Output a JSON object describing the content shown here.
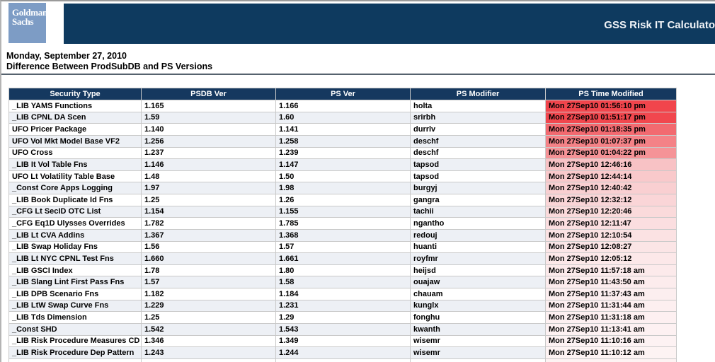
{
  "brand": {
    "logo_line1": "Goldman",
    "logo_line2": "Sachs",
    "banner_title": "GSS Risk IT Calculato"
  },
  "page": {
    "date_line": "Monday, September 27, 2010",
    "subtitle": "Difference Between ProdSubDB and PS Versions"
  },
  "colors": {
    "logo_bg": "#7d9cc5",
    "banner_bg": "#0e3a5f",
    "table_header_bg": "#15385f",
    "row_stripe_bg": "#edf0f5",
    "hot_red": "#f1454c",
    "faded_pink": "#fdf3f3"
  },
  "table": {
    "columns": [
      "Security Type",
      "PSDB Ver",
      "PS Ver",
      "PS Modifier",
      "PS Time Modified"
    ],
    "rows": [
      {
        "security_type": "_LIB YAMS Functions",
        "psdb_ver": "1.165",
        "ps_ver": "1.166",
        "ps_modifier": "holta",
        "ps_time_modified": "Mon 27Sep10 01:56:10 pm",
        "time_bg": "#f1454c"
      },
      {
        "security_type": "_LIB CPNL DA Scen",
        "psdb_ver": "1.59",
        "ps_ver": "1.60",
        "ps_modifier": "srirbh",
        "ps_time_modified": "Mon 27Sep10 01:51:17 pm",
        "time_bg": "#f1474e"
      },
      {
        "security_type": "UFO Pricer Package",
        "psdb_ver": "1.140",
        "ps_ver": "1.141",
        "ps_modifier": "durrlv",
        "ps_time_modified": "Mon 27Sep10 01:18:35 pm",
        "time_bg": "#f26a70"
      },
      {
        "security_type": "UFO Vol Mkt Model Base VF2",
        "psdb_ver": "1.256",
        "ps_ver": "1.258",
        "ps_modifier": "deschf",
        "ps_time_modified": "Mon 27Sep10 01:07:37 pm",
        "time_bg": "#f48287"
      },
      {
        "security_type": "UFO Cross",
        "psdb_ver": "1.237",
        "ps_ver": "1.239",
        "ps_modifier": "deschf",
        "ps_time_modified": "Mon 27Sep10 01:04:22 pm",
        "time_bg": "#f59397"
      },
      {
        "security_type": "_LIB It Vol Table Fns",
        "psdb_ver": "1.146",
        "ps_ver": "1.147",
        "ps_modifier": "tapsod",
        "ps_time_modified": "Mon 27Sep10 12:46:16",
        "time_bg": "#f8c2c5"
      },
      {
        "security_type": "UFO Lt Volatility Table Base",
        "psdb_ver": "1.48",
        "ps_ver": "1.50",
        "ps_modifier": "tapsod",
        "ps_time_modified": "Mon 27Sep10 12:44:14",
        "time_bg": "#f9c9cb"
      },
      {
        "security_type": "_Const Core Apps Logging",
        "psdb_ver": "1.97",
        "ps_ver": "1.98",
        "ps_modifier": "burgyj",
        "ps_time_modified": "Mon 27Sep10 12:40:42",
        "time_bg": "#f9cfd1"
      },
      {
        "security_type": "_LIB Book Duplicate Id Fns",
        "psdb_ver": "1.25",
        "ps_ver": "1.26",
        "ps_modifier": "gangra",
        "ps_time_modified": "Mon 27Sep10 12:32:12",
        "time_bg": "#fad5d7"
      },
      {
        "security_type": "_CFG Lt SecID OTC List",
        "psdb_ver": "1.154",
        "ps_ver": "1.155",
        "ps_modifier": "tachii",
        "ps_time_modified": "Mon 27Sep10 12:20:46",
        "time_bg": "#fadadb"
      },
      {
        "security_type": "_CFG Eq1D Ulysses Overrides",
        "psdb_ver": "1.782",
        "ps_ver": "1.785",
        "ps_modifier": "ngantho",
        "ps_time_modified": "Mon 27Sep10 12:11:47",
        "time_bg": "#fbdee0"
      },
      {
        "security_type": "_LIB Lt CVA Addins",
        "psdb_ver": "1.367",
        "ps_ver": "1.368",
        "ps_modifier": "redouj",
        "ps_time_modified": "Mon 27Sep10 12:10:54",
        "time_bg": "#fbe2e3"
      },
      {
        "security_type": "_LIB Swap Holiday Fns",
        "psdb_ver": "1.56",
        "ps_ver": "1.57",
        "ps_modifier": "huanti",
        "ps_time_modified": "Mon 27Sep10 12:08:27",
        "time_bg": "#fbe5e6"
      },
      {
        "security_type": "_LIB Lt NYC CPNL Test Fns",
        "psdb_ver": "1.660",
        "ps_ver": "1.661",
        "ps_modifier": "royfmr",
        "ps_time_modified": "Mon 27Sep10 12:05:12",
        "time_bg": "#fce8e9"
      },
      {
        "security_type": "_LIB GSCI Index",
        "psdb_ver": "1.78",
        "ps_ver": "1.80",
        "ps_modifier": "heijsd",
        "ps_time_modified": "Mon 27Sep10 11:57:18 am",
        "time_bg": "#fceaeb"
      },
      {
        "security_type": "_LIB Slang Lint First Pass Fns",
        "psdb_ver": "1.57",
        "ps_ver": "1.58",
        "ps_modifier": "ouajaw",
        "ps_time_modified": "Mon 27Sep10 11:43:50 am",
        "time_bg": "#fceced"
      },
      {
        "security_type": "_LIB DPB Scenario Fns",
        "psdb_ver": "1.182",
        "ps_ver": "1.184",
        "ps_modifier": "chauam",
        "ps_time_modified": "Mon 27Sep10 11:37:43 am",
        "time_bg": "#fceeef"
      },
      {
        "security_type": "_LIB LtW Swap Curve Fns",
        "psdb_ver": "1.229",
        "ps_ver": "1.231",
        "ps_modifier": "kunglx",
        "ps_time_modified": "Mon 27Sep10 11:31:44 am",
        "time_bg": "#fdeff0"
      },
      {
        "security_type": "_LIB Tds Dimension",
        "psdb_ver": "1.25",
        "ps_ver": "1.29",
        "ps_modifier": "fonghu",
        "ps_time_modified": "Mon 27Sep10 11:31:18 am",
        "time_bg": "#fdf0f1"
      },
      {
        "security_type": "_Const SHD",
        "psdb_ver": "1.542",
        "ps_ver": "1.543",
        "ps_modifier": "kwanth",
        "ps_time_modified": "Mon 27Sep10 11:13:41 am",
        "time_bg": "#fdf1f2"
      },
      {
        "security_type": "_LIB Risk Procedure Measures CD",
        "psdb_ver": "1.346",
        "ps_ver": "1.349",
        "ps_modifier": "wisemr",
        "ps_time_modified": "Mon 27Sep10 11:10:16 am",
        "time_bg": "#fdf2f3"
      },
      {
        "security_type": "_LIB Risk Procedure Dep Pattern",
        "psdb_ver": "1.243",
        "ps_ver": "1.244",
        "ps_modifier": "wisemr",
        "ps_time_modified": "Mon 27Sep10 11:10:12 am",
        "time_bg": "#fdf3f3"
      }
    ]
  }
}
